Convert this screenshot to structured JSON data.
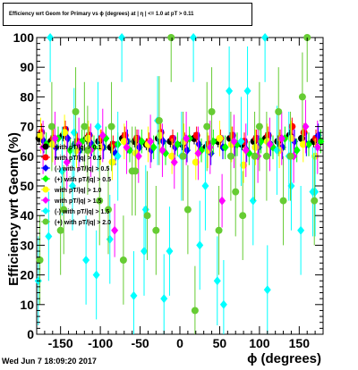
{
  "title": "Efficiency wrt Geom for Primary vs ϕ (degrees) at | η | <= 1.0 at pT > 0.11",
  "timestamp": "Wed Jun  7 18:09:20 2017",
  "chart_data": {
    "type": "scatter",
    "xlabel": "ϕ (degrees)",
    "ylabel": "Efficiency wrt Geom (%)",
    "xlim": [
      -180,
      180
    ],
    "ylim": [
      0,
      100
    ],
    "xticks": [
      -150,
      -100,
      -50,
      0,
      50,
      100,
      150
    ],
    "yticks": [
      0,
      10,
      20,
      30,
      40,
      50,
      60,
      70,
      80,
      90,
      100
    ],
    "grid": false,
    "legend_position": "left",
    "series": [
      {
        "name": "with pT/|q| > 0.1",
        "color": "#000000",
        "marker": "circle",
        "x": [
          -177,
          -162,
          -147,
          -132,
          -117,
          -102,
          -87,
          -72,
          -57,
          -42,
          -27,
          -12,
          3,
          18,
          33,
          48,
          63,
          78,
          93,
          108,
          123,
          138,
          153,
          168
        ],
        "y": [
          66,
          65,
          67,
          64,
          66,
          65,
          63,
          66,
          65,
          64,
          66,
          65,
          64,
          66,
          63,
          65,
          66,
          64,
          65,
          66,
          65,
          67,
          66,
          65
        ],
        "yerr": [
          2,
          2,
          2,
          2,
          2,
          2,
          2,
          2,
          2,
          2,
          2,
          2,
          2,
          2,
          2,
          2,
          2,
          2,
          2,
          2,
          2,
          2,
          2,
          2
        ]
      },
      {
        "name": "with pT/|q| > 0.5",
        "color": "#ff0000",
        "marker": "circle",
        "x": [
          -174,
          -159,
          -144,
          -129,
          -114,
          -99,
          -84,
          -69,
          -54,
          -39,
          -24,
          -9,
          6,
          21,
          36,
          51,
          66,
          81,
          96,
          111,
          126,
          141,
          156,
          171
        ],
        "y": [
          68,
          66,
          69,
          65,
          67,
          66,
          64,
          67,
          66,
          65,
          68,
          66,
          65,
          67,
          64,
          66,
          67,
          65,
          66,
          67,
          66,
          70,
          68,
          66
        ],
        "yerr": [
          3,
          3,
          3,
          3,
          3,
          3,
          3,
          3,
          3,
          3,
          3,
          3,
          3,
          3,
          3,
          3,
          3,
          3,
          3,
          3,
          3,
          3,
          3,
          3
        ]
      },
      {
        "name": "(-) with pT/|q| > 0.5",
        "color": "#0000ff",
        "marker": "diamond",
        "x": [
          -171,
          -156,
          -141,
          -126,
          -111,
          -96,
          -81,
          -66,
          -51,
          -36,
          -21,
          -6,
          9,
          24,
          39,
          54,
          69,
          84,
          99,
          114,
          129,
          144,
          159,
          174
        ],
        "y": [
          65,
          63,
          66,
          62,
          64,
          63,
          61,
          65,
          63,
          62,
          65,
          63,
          62,
          64,
          61,
          63,
          64,
          62,
          63,
          64,
          63,
          65,
          64,
          67
        ],
        "yerr": [
          4,
          4,
          4,
          4,
          4,
          4,
          4,
          4,
          4,
          4,
          4,
          4,
          4,
          4,
          4,
          4,
          4,
          4,
          4,
          4,
          4,
          4,
          4,
          4
        ]
      },
      {
        "name": "(+) with pT/|q| > 0.5",
        "color": "#00ff00",
        "marker": "diamond",
        "x": [
          -168,
          -153,
          -138,
          -123,
          -108,
          -93,
          -78,
          -63,
          -48,
          -33,
          -18,
          -3,
          12,
          27,
          42,
          57,
          72,
          87,
          102,
          117,
          132,
          147,
          162,
          177
        ],
        "y": [
          64,
          66,
          62,
          65,
          63,
          66,
          64,
          62,
          65,
          63,
          61,
          64,
          66,
          62,
          65,
          63,
          64,
          61,
          65,
          63,
          66,
          62,
          64,
          65
        ],
        "yerr": [
          4,
          4,
          4,
          4,
          4,
          4,
          4,
          4,
          4,
          4,
          4,
          4,
          4,
          4,
          4,
          4,
          4,
          4,
          4,
          4,
          4,
          4,
          4,
          4
        ]
      },
      {
        "name": "with pT/|q| > 1.0",
        "color": "#ffff00",
        "marker": "circle",
        "x": [
          -175,
          -160,
          -145,
          -130,
          -115,
          -100,
          -85,
          -70,
          -55,
          -40,
          -25,
          -10,
          5,
          20,
          35,
          50,
          65,
          80,
          95,
          110,
          125,
          140,
          155,
          170
        ],
        "y": [
          67,
          64,
          68,
          62,
          66,
          63,
          58,
          65,
          61,
          64,
          67,
          60,
          65,
          58,
          62,
          66,
          64,
          57,
          63,
          65,
          62,
          66,
          64,
          60
        ],
        "yerr": [
          6,
          6,
          6,
          6,
          6,
          6,
          6,
          6,
          6,
          6,
          6,
          6,
          6,
          6,
          6,
          6,
          6,
          6,
          6,
          6,
          6,
          6,
          6,
          6
        ]
      },
      {
        "name": "with pT/|q| > 1.5",
        "color": "#ff00ff",
        "marker": "diamond",
        "x": [
          -172,
          -157,
          -142,
          -127,
          -112,
          -97,
          -82,
          -67,
          -52,
          -37,
          -22,
          -7,
          8,
          23,
          38,
          53,
          68,
          83,
          98,
          113,
          128,
          143,
          158,
          173
        ],
        "y": [
          63,
          66,
          58,
          64,
          62,
          67,
          35,
          63,
          60,
          65,
          62,
          58,
          66,
          61,
          63,
          45,
          65,
          62,
          60,
          64,
          66,
          60,
          70,
          63
        ],
        "yerr": [
          9,
          9,
          9,
          9,
          9,
          9,
          9,
          9,
          9,
          9,
          9,
          9,
          9,
          9,
          9,
          9,
          9,
          9,
          9,
          9,
          9,
          9,
          9,
          9
        ]
      },
      {
        "name": "(-) with pT/|q| > 1.5",
        "color": "#00ffff",
        "marker": "diamond",
        "x": [
          -178,
          -163,
          -148,
          -133,
          -118,
          -103,
          -88,
          -73,
          -58,
          -43,
          -28,
          -13,
          2,
          17,
          32,
          47,
          62,
          77,
          92,
          107,
          122,
          137,
          152,
          167,
          -165,
          -135,
          -105,
          -78,
          -45,
          -20,
          25,
          55,
          85,
          110,
          140,
          170
        ],
        "y": [
          18,
          100,
          55,
          68,
          25,
          70,
          32,
          100,
          13,
          42,
          72,
          28,
          60,
          100,
          50,
          18,
          82,
          65,
          45,
          100,
          62,
          60,
          35,
          48,
          33,
          50,
          20,
          60,
          28,
          12,
          30,
          10,
          82,
          15,
          50,
          48
        ],
        "yerr": [
          15,
          15,
          15,
          15,
          15,
          15,
          15,
          15,
          15,
          15,
          15,
          15,
          15,
          15,
          15,
          15,
          15,
          15,
          15,
          15,
          15,
          15,
          15,
          15,
          15,
          15,
          15,
          15,
          15,
          15,
          15,
          15,
          15,
          15,
          15,
          15
        ]
      },
      {
        "name": "(+) with pT/|q| > 2.0",
        "color": "#66cc33",
        "marker": "circle",
        "x": [
          -176,
          -161,
          -146,
          -131,
          -116,
          -101,
          -86,
          -71,
          -56,
          -41,
          -26,
          -11,
          4,
          19,
          34,
          49,
          64,
          79,
          94,
          109,
          124,
          139,
          154,
          169,
          -150,
          -120,
          -90,
          -60,
          -30,
          10,
          40,
          70,
          100,
          130,
          160
        ],
        "y": [
          25,
          70,
          42,
          75,
          62,
          45,
          70,
          25,
          55,
          40,
          72,
          100,
          60,
          8,
          70,
          35,
          60,
          40,
          60,
          60,
          75,
          60,
          80,
          45,
          35,
          70,
          42,
          55,
          35,
          42,
          75,
          48,
          70,
          45,
          100
        ],
        "yerr": [
          15,
          15,
          15,
          15,
          15,
          15,
          15,
          15,
          15,
          15,
          15,
          15,
          15,
          15,
          15,
          15,
          15,
          15,
          15,
          15,
          15,
          15,
          15,
          15,
          15,
          15,
          15,
          15,
          15,
          15,
          15,
          15,
          15,
          15,
          15
        ]
      }
    ]
  }
}
